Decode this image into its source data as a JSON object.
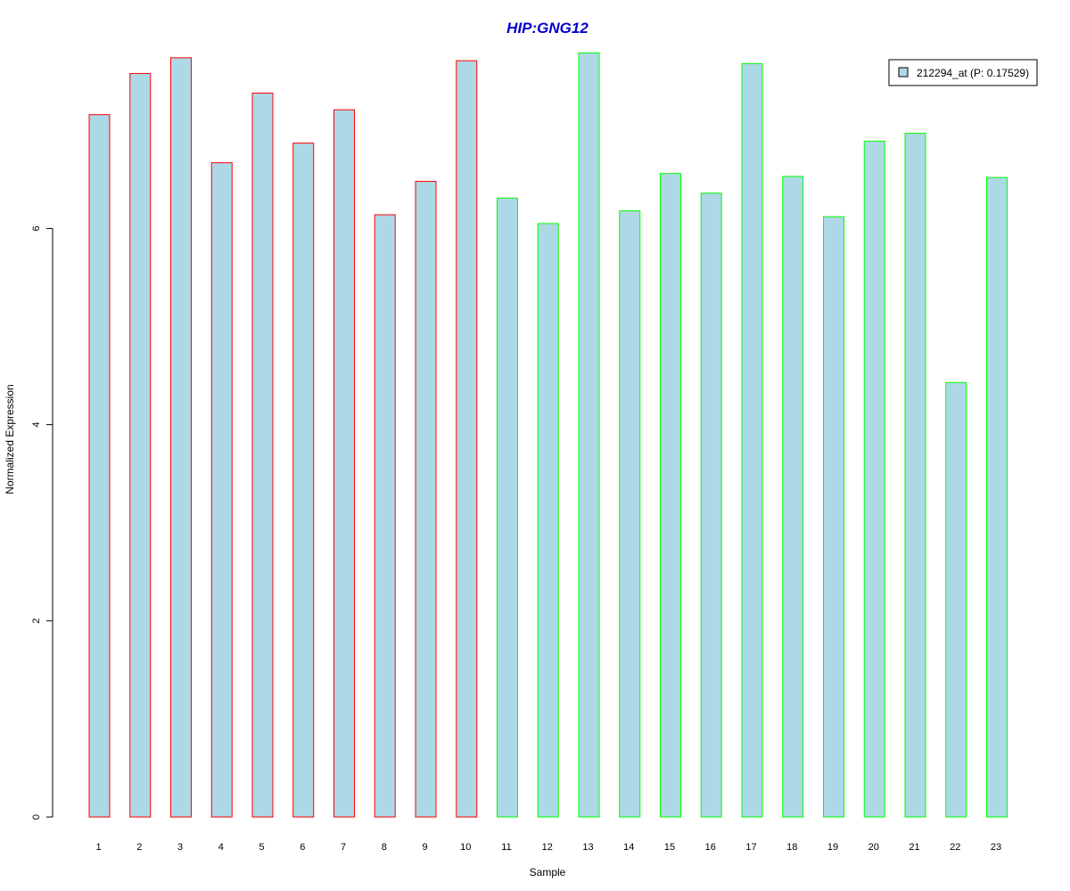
{
  "chart_data": {
    "type": "bar",
    "title": "HIP:GNG12",
    "title_color": "#0000cc",
    "xlabel": "Sample",
    "ylabel": "Normalized Expression",
    "ylim": [
      0,
      7.75
    ],
    "yticks": [
      0,
      2,
      4,
      6
    ],
    "grid": false,
    "legend_position": "top-right",
    "categories": [
      "1",
      "2",
      "3",
      "4",
      "5",
      "6",
      "7",
      "8",
      "9",
      "10",
      "11",
      "12",
      "13",
      "14",
      "15",
      "16",
      "17",
      "18",
      "19",
      "20",
      "21",
      "22",
      "23"
    ],
    "series": [
      {
        "name": "212294_at (P: 0.17529)",
        "fill": "#add8e6",
        "values": [
          7.16,
          7.58,
          7.74,
          6.67,
          7.38,
          6.87,
          7.21,
          6.14,
          6.48,
          7.71,
          6.31,
          6.05,
          7.79,
          6.18,
          6.56,
          6.36,
          7.68,
          6.53,
          6.12,
          6.89,
          6.97,
          4.43,
          6.52
        ]
      }
    ],
    "group_colors": [
      "#ff0000",
      "#ff0000",
      "#ff0000",
      "#ff0000",
      "#ff0000",
      "#ff0000",
      "#ff0000",
      "#ff0000",
      "#ff0000",
      "#ff0000",
      "#00ff00",
      "#00ff00",
      "#00ff00",
      "#00ff00",
      "#00ff00",
      "#00ff00",
      "#00ff00",
      "#00ff00",
      "#00ff00",
      "#00ff00",
      "#00ff00",
      "#00ff00",
      "#00ff00"
    ]
  }
}
